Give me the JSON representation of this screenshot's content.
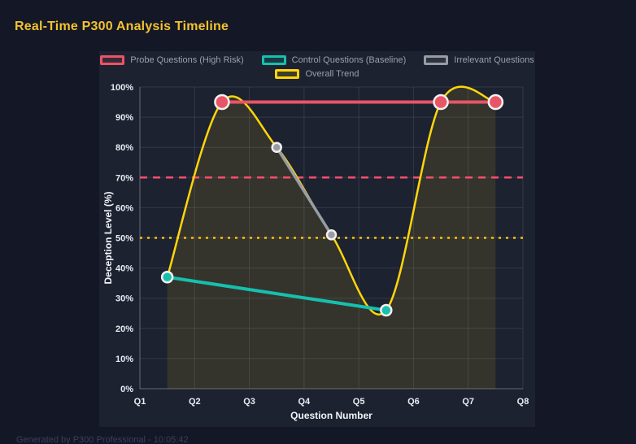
{
  "header": {
    "title": "Real-Time P300 Analysis Timeline",
    "title_color": "#f2c230"
  },
  "footer": {
    "text": "Generated by P300 Professional - 10:05:42"
  },
  "chart_data": {
    "type": "line",
    "title": "Real-Time P300 Analysis Timeline",
    "xlabel": "Question Number",
    "ylabel": "Deception Level (%)",
    "xlim": [
      1,
      8
    ],
    "ylim": [
      0,
      100
    ],
    "grid": true,
    "legend_position": "top",
    "x_ticks": {
      "values": [
        1,
        2,
        3,
        4,
        5,
        6,
        7,
        8
      ],
      "labels": [
        "Q1",
        "Q2",
        "Q3",
        "Q4",
        "Q5",
        "Q6",
        "Q7",
        "Q8"
      ]
    },
    "y_ticks": {
      "values": [
        0,
        10,
        20,
        30,
        40,
        50,
        60,
        70,
        80,
        90,
        100
      ],
      "labels": [
        "0%",
        "10%",
        "20%",
        "30%",
        "40%",
        "50%",
        "60%",
        "70%",
        "80%",
        "90%",
        "100%"
      ]
    },
    "series": [
      {
        "name": "Probe Questions (High Risk)",
        "color": "#e85566",
        "line_width": 4,
        "smooth": false,
        "point_radius": 8.5,
        "points": [
          {
            "x": 2.5,
            "y": 95
          },
          {
            "x": 6.5,
            "y": 95
          },
          {
            "x": 7.5,
            "y": 95
          }
        ]
      },
      {
        "name": "Control Questions (Baseline)",
        "color": "#16c0ae",
        "line_width": 4,
        "smooth": false,
        "point_radius": 6.5,
        "points": [
          {
            "x": 1.5,
            "y": 37
          },
          {
            "x": 5.5,
            "y": 26
          }
        ]
      },
      {
        "name": "Irrelevant Questions",
        "color": "#989ca3",
        "line_width": 3.5,
        "smooth": false,
        "point_radius": 5.5,
        "points": [
          {
            "x": 3.5,
            "y": 80
          },
          {
            "x": 4.5,
            "y": 51
          }
        ]
      },
      {
        "name": "Overall Trend",
        "color": "#ffd60a",
        "line_width": 2.5,
        "smooth": true,
        "point_radius": 0,
        "area_fill": "rgba(255,214,10,0.10)",
        "points": [
          {
            "x": 1.5,
            "y": 37
          },
          {
            "x": 2.5,
            "y": 95
          },
          {
            "x": 3.5,
            "y": 80
          },
          {
            "x": 4.5,
            "y": 51
          },
          {
            "x": 5.5,
            "y": 26
          },
          {
            "x": 6.5,
            "y": 95
          },
          {
            "x": 7.5,
            "y": 95
          }
        ]
      }
    ],
    "reference_lines": [
      {
        "y": 70,
        "color": "#ff4d6d",
        "dash": "9 7",
        "width": 2.5
      },
      {
        "y": 50,
        "color": "#ffc107",
        "dash": "3 6",
        "width": 2.5
      }
    ]
  }
}
